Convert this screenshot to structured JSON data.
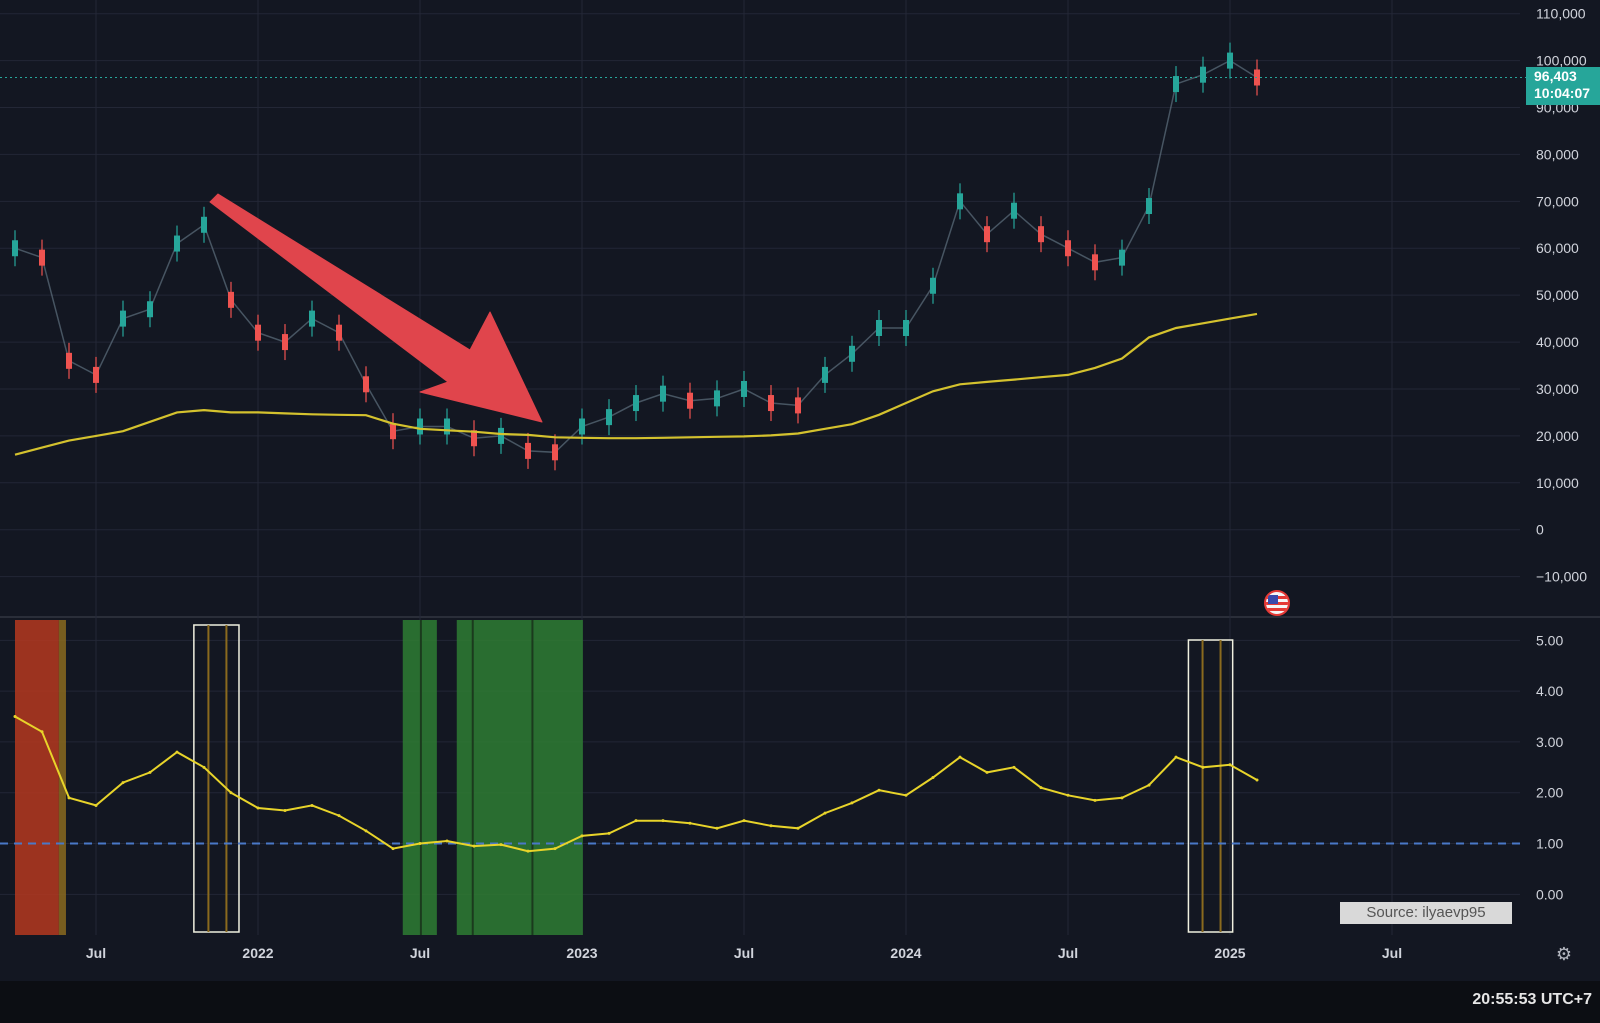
{
  "colors": {
    "background": "#131722",
    "grid": "#232736",
    "candle_up": "#26a69a",
    "candle_down": "#ef5350",
    "moving_average": "#d4c22e",
    "indicator_line": "#e8d42a",
    "reference_line": "#4a78c8",
    "arrow": "#e0454c",
    "green_zone": "#2e7d32",
    "red_zone": "#b5381f",
    "orange_zone": "#8a6a1e",
    "highlight_box": "#f0f0e0"
  },
  "current_price": {
    "value": "96,403",
    "countdown": "10:04:07"
  },
  "source_label": "Source: ilyaevp95",
  "clock": "20:55:53 UTC+7",
  "x_axis_labels": [
    "Jul",
    "2022",
    "Jul",
    "2023",
    "Jul",
    "2024",
    "Jul",
    "2025",
    "Jul"
  ],
  "chart_data": [
    {
      "type": "line",
      "panel": "price",
      "y_tick_labels": [
        "110,000",
        "100,000",
        "90,000",
        "80,000",
        "70,000",
        "60,000",
        "50,000",
        "40,000",
        "30,000",
        "20,000",
        "10,000",
        "0",
        "−10,000"
      ],
      "ylim": [
        -12000,
        111000
      ],
      "x_dates": [
        "2021-04",
        "2021-05",
        "2021-06",
        "2021-07",
        "2021-08",
        "2021-09",
        "2021-10",
        "2021-11",
        "2021-12",
        "2022-01",
        "2022-02",
        "2022-03",
        "2022-04",
        "2022-05",
        "2022-06",
        "2022-07",
        "2022-08",
        "2022-09",
        "2022-10",
        "2022-11",
        "2022-12",
        "2023-01",
        "2023-02",
        "2023-03",
        "2023-04",
        "2023-05",
        "2023-06",
        "2023-07",
        "2023-08",
        "2023-09",
        "2023-10",
        "2023-11",
        "2023-12",
        "2024-01",
        "2024-02",
        "2024-03",
        "2024-04",
        "2024-05",
        "2024-06",
        "2024-07",
        "2024-08",
        "2024-09",
        "2024-10",
        "2024-11",
        "2024-12",
        "2025-01",
        "2025-02"
      ],
      "series": [
        {
          "values": [
            60000,
            58000,
            36000,
            33000,
            45000,
            47000,
            61000,
            65000,
            49000,
            42000,
            40000,
            45000,
            42000,
            31000,
            21000,
            22000,
            22000,
            19500,
            20000,
            16800,
            16500,
            22000,
            24000,
            27000,
            29000,
            27500,
            28000,
            30000,
            27000,
            26500,
            33000,
            37500,
            43000,
            43000,
            52000,
            70000,
            63000,
            68000,
            63000,
            60000,
            57000,
            58000,
            69000,
            95000,
            97000,
            100000,
            96400
          ]
        },
        {
          "values": [
            16000,
            17500,
            19000,
            20000,
            21000,
            23000,
            25000,
            25500,
            25000,
            25000,
            24800,
            24600,
            24500,
            24400,
            22600,
            21500,
            21200,
            20900,
            20400,
            20200,
            19700,
            19600,
            19500,
            19500,
            19600,
            19700,
            19800,
            19900,
            20100,
            20500,
            21500,
            22500,
            24500,
            27000,
            29500,
            31000,
            31500,
            32000,
            32500,
            33000,
            34500,
            36500,
            41000,
            43000,
            44000,
            45000,
            46000
          ]
        }
      ]
    },
    {
      "type": "line",
      "panel": "indicator",
      "y_tick_labels": [
        "5.00",
        "4.00",
        "3.00",
        "2.00",
        "1.00",
        "0.00"
      ],
      "ylim": [
        -0.8,
        5.4
      ],
      "reference_level": 1.0,
      "x_dates": [
        "2021-04",
        "2021-05",
        "2021-06",
        "2021-07",
        "2021-08",
        "2021-09",
        "2021-10",
        "2021-11",
        "2021-12",
        "2022-01",
        "2022-02",
        "2022-03",
        "2022-04",
        "2022-05",
        "2022-06",
        "2022-07",
        "2022-08",
        "2022-09",
        "2022-10",
        "2022-11",
        "2022-12",
        "2023-01",
        "2023-02",
        "2023-03",
        "2023-04",
        "2023-05",
        "2023-06",
        "2023-07",
        "2023-08",
        "2023-09",
        "2023-10",
        "2023-11",
        "2023-12",
        "2024-01",
        "2024-02",
        "2024-03",
        "2024-04",
        "2024-05",
        "2024-06",
        "2024-07",
        "2024-08",
        "2024-09",
        "2024-10",
        "2024-11",
        "2024-12",
        "2025-01",
        "2025-02"
      ],
      "series": [
        {
          "values": [
            3.5,
            3.2,
            1.9,
            1.75,
            2.2,
            2.4,
            2.8,
            2.5,
            2.0,
            1.7,
            1.65,
            1.75,
            1.55,
            1.25,
            0.9,
            1.0,
            1.05,
            0.95,
            0.98,
            0.85,
            0.9,
            1.15,
            1.2,
            1.45,
            1.45,
            1.4,
            1.3,
            1.45,
            1.35,
            1.3,
            1.6,
            1.8,
            2.05,
            1.95,
            2.3,
            2.7,
            2.4,
            2.5,
            2.1,
            1.95,
            1.85,
            1.9,
            2.15,
            2.7,
            2.5,
            2.55,
            2.25
          ]
        }
      ]
    }
  ]
}
